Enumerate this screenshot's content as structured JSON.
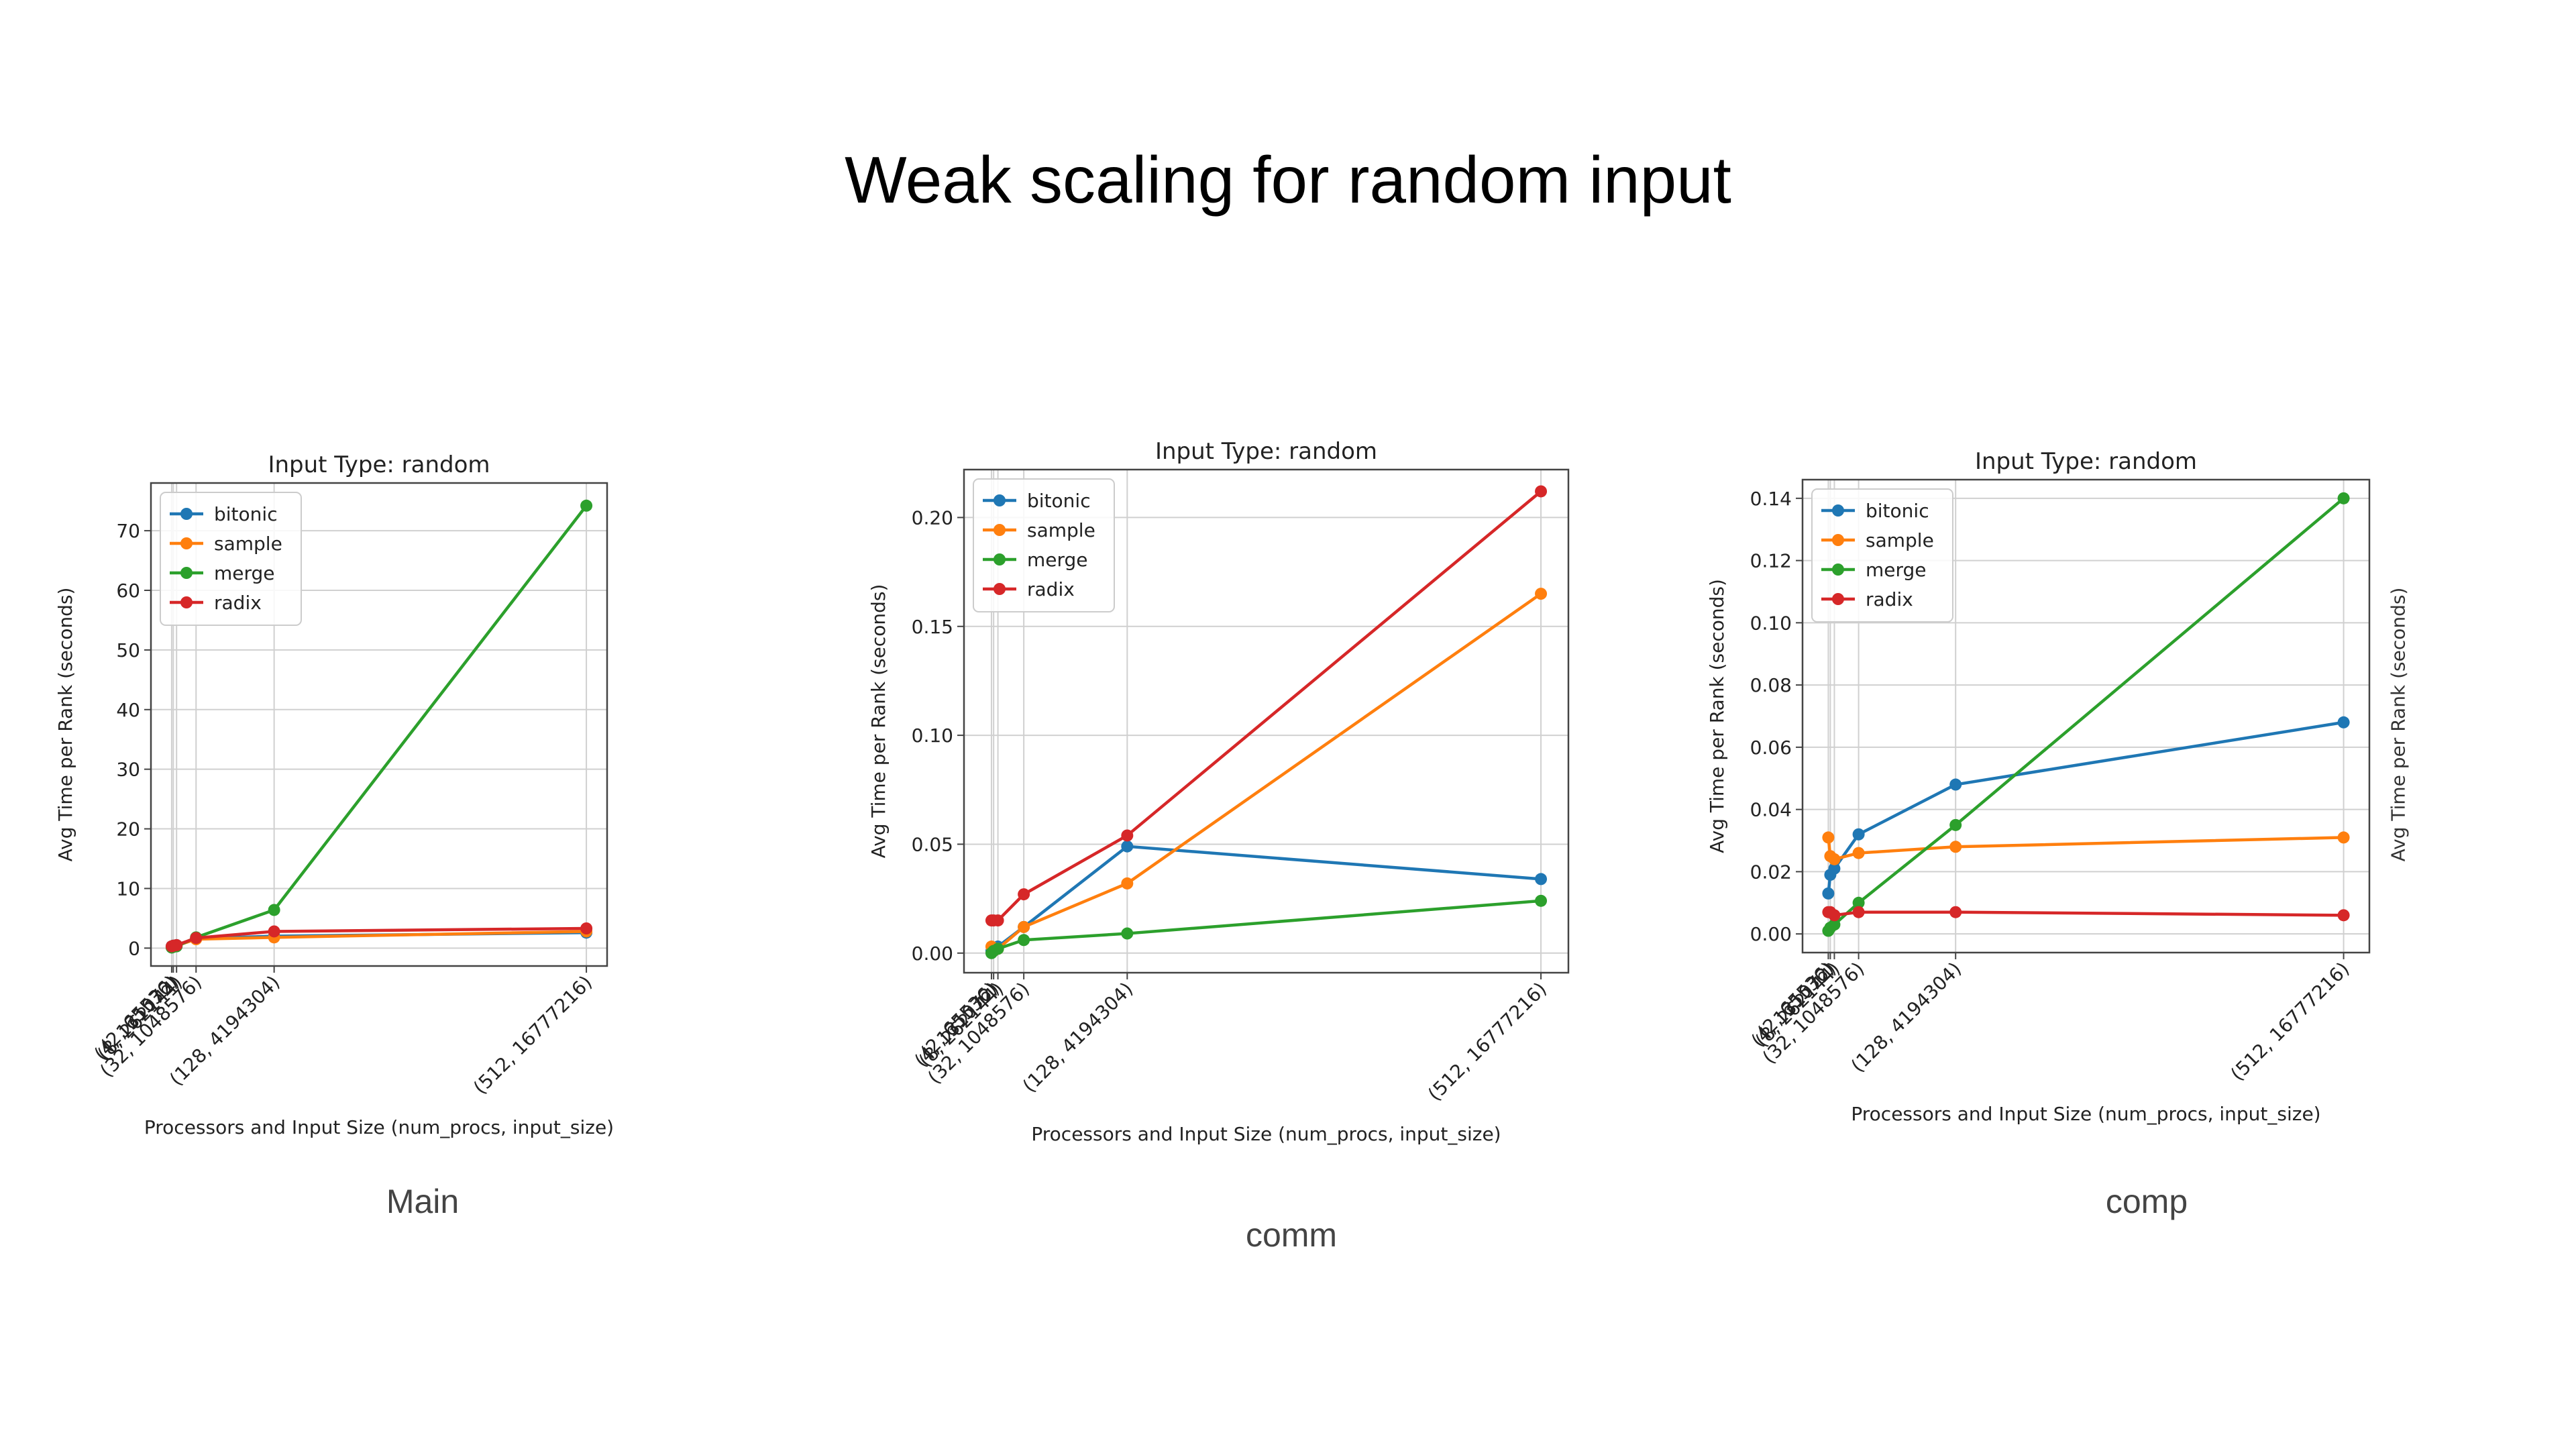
{
  "slide": {
    "title": "Weak scaling for random input",
    "captions": [
      "Main",
      "comm",
      "comp"
    ],
    "clipped_ylabel": "Avg Time per Rank (seconds)"
  },
  "colors": {
    "bitonic": "#1f77b4",
    "sample": "#ff7f0e",
    "merge": "#2ca02c",
    "radix": "#d62728"
  },
  "chart_data": [
    {
      "type": "line",
      "title": "Input Type: random",
      "xlabel": "Processors and Input Size (num_procs, input_size)",
      "ylabel": "Avg Time per Rank (seconds)",
      "x": [
        2,
        4,
        8,
        32,
        128,
        512
      ],
      "x_tick_labels": [
        "(2, 65536)",
        "(4, 131072)",
        "(8, 262144)",
        "(32, 1048576)",
        "(128, 4194304)",
        "(512, 16777216)"
      ],
      "ylim": [
        -3,
        78
      ],
      "yticks": [
        0,
        10,
        20,
        30,
        40,
        50,
        60,
        70
      ],
      "ytick_labels": [
        "0",
        "10",
        "20",
        "30",
        "40",
        "50",
        "60",
        "70"
      ],
      "grid": true,
      "legend": "upper-left",
      "series": [
        {
          "name": "bitonic",
          "values": [
            0.3,
            0.4,
            0.5,
            1.6,
            2.0,
            2.6
          ]
        },
        {
          "name": "sample",
          "values": [
            0.2,
            0.3,
            0.4,
            1.5,
            1.8,
            2.8
          ]
        },
        {
          "name": "merge",
          "values": [
            0.1,
            0.2,
            0.3,
            1.8,
            6.4,
            74.2
          ]
        },
        {
          "name": "radix",
          "values": [
            0.3,
            0.4,
            0.5,
            1.7,
            2.8,
            3.3
          ]
        }
      ]
    },
    {
      "type": "line",
      "title": "Input Type: random",
      "xlabel": "Processors and Input Size (num_procs, input_size)",
      "ylabel": "Avg Time per Rank (seconds)",
      "x": [
        2,
        4,
        8,
        32,
        128,
        512
      ],
      "x_tick_labels": [
        "(2, 65536)",
        "(4, 131072)",
        "(8, 262144)",
        "(32, 1048576)",
        "(128, 4194304)",
        "(512, 16777216)"
      ],
      "ylim": [
        -0.009,
        0.222
      ],
      "yticks": [
        0,
        0.05,
        0.1,
        0.15,
        0.2
      ],
      "ytick_labels": [
        "0.00",
        "0.05",
        "0.10",
        "0.15",
        "0.20"
      ],
      "grid": true,
      "legend": "upper-left",
      "series": [
        {
          "name": "bitonic",
          "values": [
            0.001,
            0.002,
            0.003,
            0.012,
            0.049,
            0.034
          ]
        },
        {
          "name": "sample",
          "values": [
            0.003,
            0.001,
            0.002,
            0.012,
            0.032,
            0.165
          ]
        },
        {
          "name": "merge",
          "values": [
            0.0,
            0.001,
            0.002,
            0.006,
            0.009,
            0.024
          ]
        },
        {
          "name": "radix",
          "values": [
            0.015,
            0.015,
            0.015,
            0.027,
            0.054,
            0.212
          ]
        }
      ]
    },
    {
      "type": "line",
      "title": "Input Type: random",
      "xlabel": "Processors and Input Size (num_procs, input_size)",
      "ylabel": "Avg Time per Rank (seconds)",
      "x": [
        2,
        4,
        8,
        32,
        128,
        512
      ],
      "x_tick_labels": [
        "(2, 65536)",
        "(4, 131072)",
        "(8, 262144)",
        "(32, 1048576)",
        "(128, 4194304)",
        "(512, 16777216)"
      ],
      "ylim": [
        -0.006,
        0.146
      ],
      "yticks": [
        0,
        0.02,
        0.04,
        0.06,
        0.08,
        0.1,
        0.12,
        0.14
      ],
      "ytick_labels": [
        "0.00",
        "0.02",
        "0.04",
        "0.06",
        "0.08",
        "0.10",
        "0.12",
        "0.14"
      ],
      "grid": true,
      "legend": "upper-left",
      "series": [
        {
          "name": "bitonic",
          "values": [
            0.013,
            0.019,
            0.021,
            0.032,
            0.048,
            0.068
          ]
        },
        {
          "name": "sample",
          "values": [
            0.031,
            0.025,
            0.024,
            0.026,
            0.028,
            0.031
          ]
        },
        {
          "name": "merge",
          "values": [
            0.001,
            0.002,
            0.003,
            0.01,
            0.035,
            0.14
          ]
        },
        {
          "name": "radix",
          "values": [
            0.007,
            0.007,
            0.006,
            0.007,
            0.007,
            0.006
          ]
        }
      ]
    }
  ]
}
